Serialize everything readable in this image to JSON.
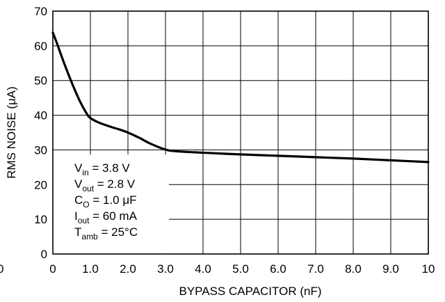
{
  "chart_data": {
    "type": "line",
    "xlabel": "BYPASS CAPACITOR (nF)",
    "ylabel_parts": [
      "RMS NOISE (",
      "μ",
      "A)"
    ],
    "xlim": [
      0,
      10
    ],
    "ylim": [
      0,
      70
    ],
    "x_ticks": [
      "0",
      "1.0",
      "2.0",
      "3.0",
      "4.0",
      "5.0",
      "6.0",
      "7.0",
      "8.0",
      "9.0",
      "10"
    ],
    "y_ticks": [
      "0",
      "10",
      "20",
      "30",
      "40",
      "50",
      "60",
      "70"
    ],
    "stray_left_label": "0",
    "grid": true,
    "series": [
      {
        "x": [
          0,
          0.1,
          0.3,
          0.5,
          0.7,
          0.9,
          1.0,
          1.2,
          1.5,
          1.8,
          2.0,
          2.3,
          2.6,
          3.0,
          3.3,
          4.0,
          5.0,
          6.0,
          7.0,
          8.0,
          9.0,
          10.0
        ],
        "y": [
          63.8,
          61.0,
          55.0,
          49.5,
          44.5,
          40.5,
          39.2,
          38.0,
          36.8,
          35.8,
          35.0,
          33.5,
          31.8,
          30.1,
          29.6,
          29.2,
          28.7,
          28.3,
          27.9,
          27.5,
          27.0,
          26.5
        ],
        "color": "#000000"
      }
    ],
    "annotation": [
      {
        "main": "V",
        "sub": "in",
        "rest": " = 3.8 V"
      },
      {
        "main": "V",
        "sub": "out",
        "rest": " = 2.8 V"
      },
      {
        "main": "C",
        "sub": "O",
        "rest": " = 1.0 μF"
      },
      {
        "main": "I",
        "sub": "out",
        "rest": " = 60 mA"
      },
      {
        "main": "T",
        "sub": "amb",
        "rest": " = 25°C"
      }
    ]
  }
}
